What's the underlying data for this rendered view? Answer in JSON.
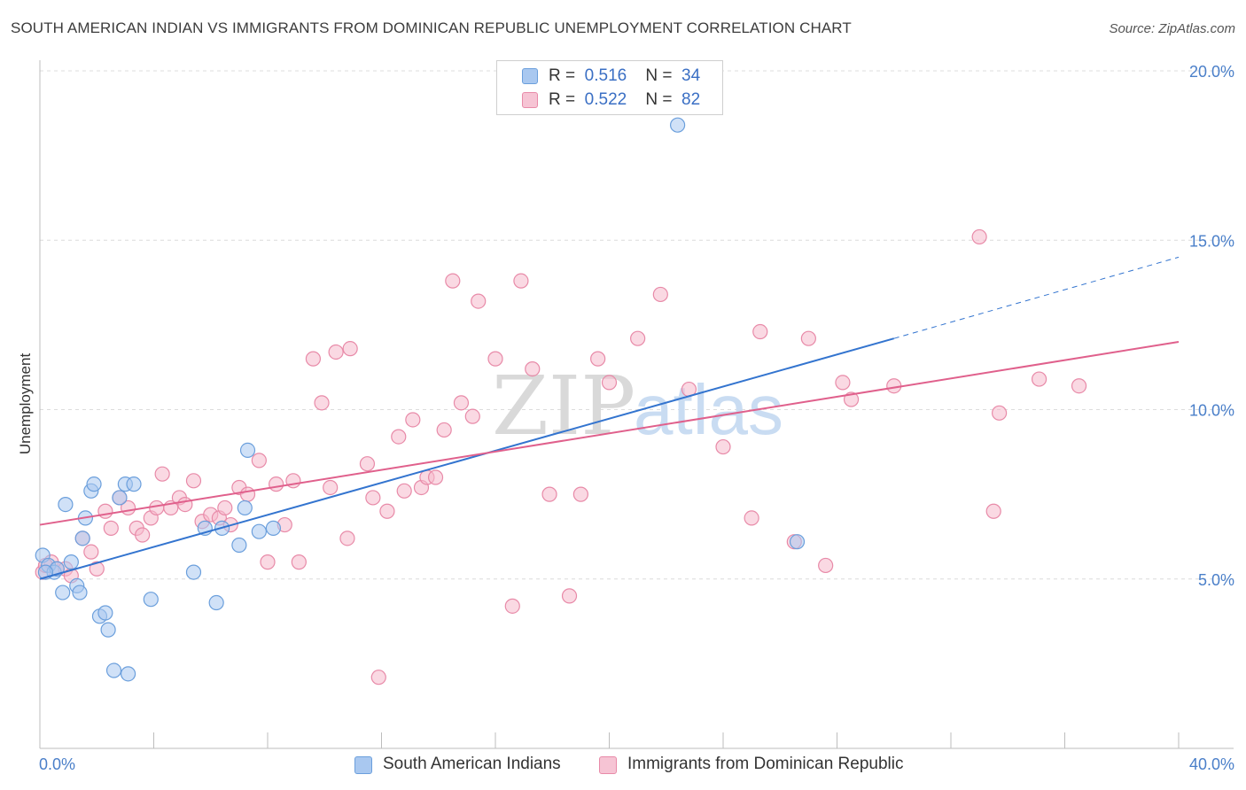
{
  "title": "SOUTH AMERICAN INDIAN VS IMMIGRANTS FROM DOMINICAN REPUBLIC UNEMPLOYMENT CORRELATION CHART",
  "source": "Source: ZipAtlas.com",
  "watermark": {
    "zip": "ZIP",
    "atlas": "atlas"
  },
  "legend": {
    "series1": {
      "r_label": "R =",
      "r_value": "0.516",
      "n_label": "N =",
      "n_value": "34"
    },
    "series2": {
      "r_label": "R =",
      "r_value": "0.522",
      "n_label": "N =",
      "n_value": "82"
    }
  },
  "colors": {
    "blue_fill": "#a9c8f0",
    "blue_stroke": "#6b9fdc",
    "blue_line": "#3374cf",
    "pink_fill": "#f6b9cc",
    "pink_stroke": "#e88aa8",
    "pink_line": "#e0608c",
    "tick_text": "#4a7fc9",
    "grid": "#dcdcdc"
  },
  "chart_data": {
    "type": "scatter",
    "title": "SOUTH AMERICAN INDIAN VS IMMIGRANTS FROM DOMINICAN REPUBLIC UNEMPLOYMENT CORRELATION CHART",
    "xlabel": "",
    "ylabel": "Unemployment",
    "xlim": [
      0,
      40
    ],
    "ylim": [
      0,
      20
    ],
    "x_tick_labels": [
      "0.0%",
      "40.0%"
    ],
    "y_ticks": [
      5,
      10,
      15,
      20
    ],
    "y_tick_labels": [
      "5.0%",
      "10.0%",
      "15.0%",
      "20.0%"
    ],
    "series": [
      {
        "name": "South American Indians",
        "R": 0.516,
        "N": 34,
        "points": [
          [
            0.1,
            5.7
          ],
          [
            0.3,
            5.4
          ],
          [
            0.5,
            5.2
          ],
          [
            0.6,
            5.3
          ],
          [
            0.8,
            4.6
          ],
          [
            0.9,
            7.2
          ],
          [
            1.1,
            5.5
          ],
          [
            1.3,
            4.8
          ],
          [
            1.4,
            4.6
          ],
          [
            1.5,
            6.2
          ],
          [
            1.6,
            6.8
          ],
          [
            1.8,
            7.6
          ],
          [
            1.9,
            7.8
          ],
          [
            2.1,
            3.9
          ],
          [
            2.3,
            4.0
          ],
          [
            2.4,
            3.5
          ],
          [
            2.6,
            2.3
          ],
          [
            2.8,
            7.4
          ],
          [
            3.0,
            7.8
          ],
          [
            3.1,
            2.2
          ],
          [
            3.3,
            7.8
          ],
          [
            3.9,
            4.4
          ],
          [
            5.4,
            5.2
          ],
          [
            5.8,
            6.5
          ],
          [
            6.2,
            4.3
          ],
          [
            6.4,
            6.5
          ],
          [
            7.0,
            6.0
          ],
          [
            7.2,
            7.1
          ],
          [
            7.3,
            8.8
          ],
          [
            7.7,
            6.4
          ],
          [
            8.2,
            6.5
          ],
          [
            22.4,
            18.4
          ],
          [
            26.6,
            6.1
          ],
          [
            0.2,
            5.2
          ]
        ],
        "trendline": {
          "x_start": 0,
          "y_start": 5.0,
          "x_end": 30,
          "y_end": 12.1,
          "dashed_extension": {
            "x_start": 30,
            "y_start": 12.1,
            "x_end": 40,
            "y_end": 14.5
          }
        }
      },
      {
        "name": "Immigrants from Dominican Republic",
        "R": 0.522,
        "N": 82,
        "points": [
          [
            0.1,
            5.2
          ],
          [
            0.4,
            5.5
          ],
          [
            0.6,
            5.3
          ],
          [
            0.9,
            5.3
          ],
          [
            1.1,
            5.1
          ],
          [
            1.5,
            6.2
          ],
          [
            1.8,
            5.8
          ],
          [
            2.3,
            7.0
          ],
          [
            2.5,
            6.5
          ],
          [
            2.8,
            7.4
          ],
          [
            3.1,
            7.1
          ],
          [
            3.4,
            6.5
          ],
          [
            3.6,
            6.3
          ],
          [
            3.9,
            6.8
          ],
          [
            4.1,
            7.1
          ],
          [
            4.3,
            8.1
          ],
          [
            4.6,
            7.1
          ],
          [
            4.9,
            7.4
          ],
          [
            5.1,
            7.2
          ],
          [
            5.4,
            7.9
          ],
          [
            5.7,
            6.7
          ],
          [
            6.0,
            6.9
          ],
          [
            6.3,
            6.8
          ],
          [
            6.5,
            7.1
          ],
          [
            6.7,
            6.6
          ],
          [
            7.0,
            7.7
          ],
          [
            7.3,
            7.5
          ],
          [
            7.7,
            8.5
          ],
          [
            8.0,
            5.5
          ],
          [
            8.3,
            7.8
          ],
          [
            8.6,
            6.6
          ],
          [
            8.9,
            7.9
          ],
          [
            9.1,
            5.5
          ],
          [
            9.6,
            11.5
          ],
          [
            9.9,
            10.2
          ],
          [
            10.2,
            7.7
          ],
          [
            10.4,
            11.7
          ],
          [
            10.8,
            6.2
          ],
          [
            10.9,
            11.8
          ],
          [
            11.5,
            8.4
          ],
          [
            11.7,
            7.4
          ],
          [
            11.9,
            2.1
          ],
          [
            12.2,
            7.0
          ],
          [
            12.6,
            9.2
          ],
          [
            12.8,
            7.6
          ],
          [
            13.1,
            9.7
          ],
          [
            13.4,
            7.7
          ],
          [
            13.6,
            8.0
          ],
          [
            13.9,
            8.0
          ],
          [
            14.2,
            9.4
          ],
          [
            14.5,
            13.8
          ],
          [
            14.8,
            10.2
          ],
          [
            15.2,
            9.8
          ],
          [
            15.4,
            13.2
          ],
          [
            16.0,
            11.5
          ],
          [
            16.6,
            4.2
          ],
          [
            16.9,
            13.8
          ],
          [
            17.3,
            11.2
          ],
          [
            17.9,
            7.5
          ],
          [
            18.6,
            4.5
          ],
          [
            19.0,
            7.5
          ],
          [
            19.6,
            11.5
          ],
          [
            20.0,
            10.8
          ],
          [
            21.0,
            12.1
          ],
          [
            21.8,
            13.4
          ],
          [
            22.8,
            10.6
          ],
          [
            24.0,
            8.9
          ],
          [
            25.0,
            6.8
          ],
          [
            25.3,
            12.3
          ],
          [
            26.5,
            6.1
          ],
          [
            27.0,
            12.1
          ],
          [
            27.6,
            5.4
          ],
          [
            28.2,
            10.8
          ],
          [
            28.5,
            10.3
          ],
          [
            30.0,
            10.7
          ],
          [
            33.0,
            15.1
          ],
          [
            33.5,
            7.0
          ],
          [
            33.7,
            9.9
          ],
          [
            35.1,
            10.9
          ],
          [
            36.5,
            10.7
          ],
          [
            0.2,
            5.4
          ],
          [
            2.0,
            5.3
          ]
        ],
        "trendline": {
          "x_start": 0,
          "y_start": 6.6,
          "x_end": 40,
          "y_end": 12.0
        }
      }
    ]
  },
  "bottom_legend": {
    "series1_label": "South American Indians",
    "series2_label": "Immigrants from Dominican Republic"
  }
}
